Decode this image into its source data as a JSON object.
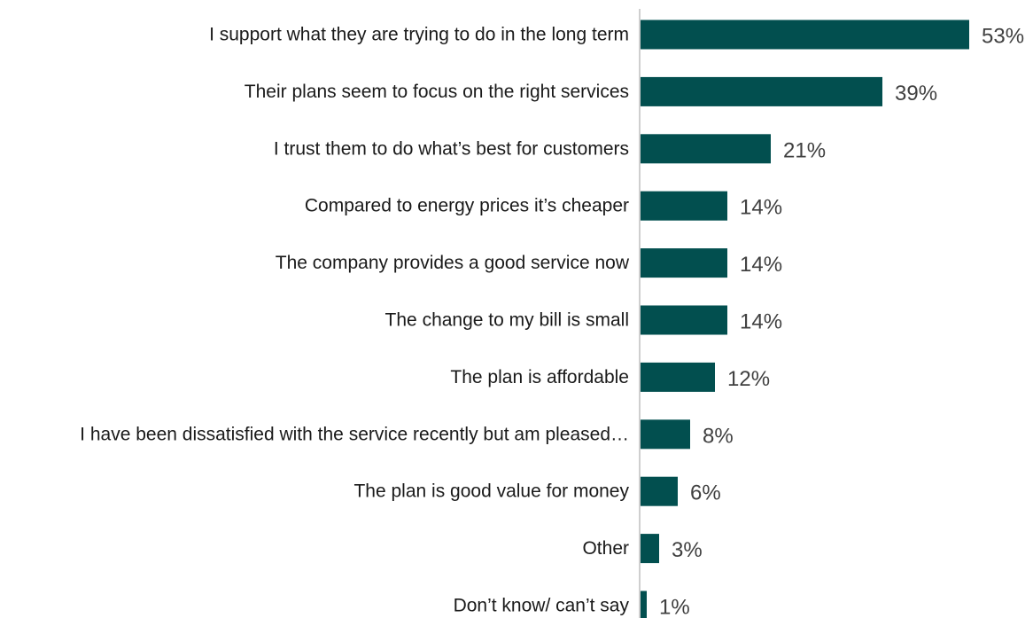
{
  "chart_data": {
    "type": "bar",
    "orientation": "horizontal",
    "title": "",
    "xlabel": "",
    "ylabel": "",
    "categories": [
      "I support what they are trying to do in the long term",
      "Their plans seem to focus on the right services",
      "I trust them to do what’s best for customers",
      "Compared to energy prices it’s cheaper",
      "The company provides a good service now",
      "The change to my bill is small",
      "The plan is affordable",
      "I have been dissatisfied with the service recently but am pleased…",
      "The plan is good value for money",
      "Other",
      "Don’t know/ can’t say"
    ],
    "values": [
      53,
      39,
      21,
      14,
      14,
      14,
      12,
      8,
      6,
      3,
      1
    ],
    "value_labels": [
      "53%",
      "39%",
      "21%",
      "14%",
      "14%",
      "14%",
      "12%",
      "8%",
      "6%",
      "3%",
      "1%"
    ],
    "unit": "%",
    "xlim": [
      0,
      53
    ],
    "grid": false,
    "legend": "none",
    "colors": {
      "bar": "#024f4f",
      "axis": "#bfbfbf"
    }
  }
}
